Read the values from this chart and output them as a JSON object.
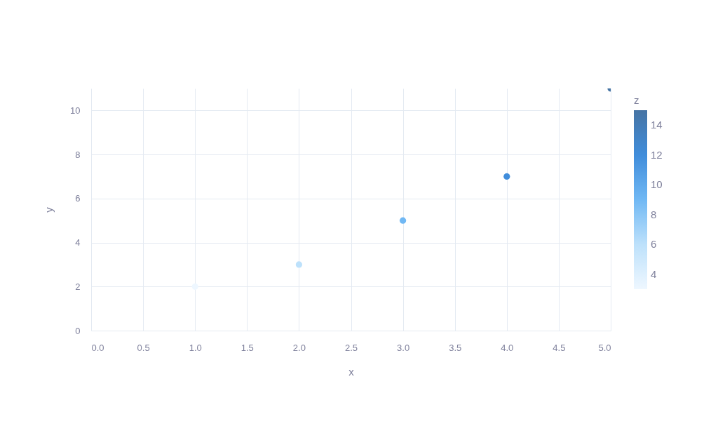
{
  "chart_data": {
    "type": "scatter",
    "xlabel": "x",
    "ylabel": "y",
    "clabel": "z",
    "x": [
      1,
      2,
      3,
      4,
      5
    ],
    "values": [
      2,
      3,
      5,
      7,
      11
    ],
    "cvalues": [
      3,
      6,
      9,
      12,
      15
    ],
    "colors": [
      "#eef7ff",
      "#bde1fb",
      "#70b8f4",
      "#408ddb",
      "#4674a4"
    ],
    "xlim": [
      0,
      5
    ],
    "ylim": [
      0,
      11
    ],
    "xticks": [
      {
        "value": 0,
        "label": "0.0"
      },
      {
        "value": 0.5,
        "label": "0.5"
      },
      {
        "value": 1,
        "label": "1.0"
      },
      {
        "value": 1.5,
        "label": "1.5"
      },
      {
        "value": 2,
        "label": "2.0"
      },
      {
        "value": 2.5,
        "label": "2.5"
      },
      {
        "value": 3,
        "label": "3.0"
      },
      {
        "value": 3.5,
        "label": "3.5"
      },
      {
        "value": 4,
        "label": "4.0"
      },
      {
        "value": 4.5,
        "label": "4.5"
      },
      {
        "value": 5,
        "label": "5.0"
      }
    ],
    "yticks": [
      0,
      2,
      4,
      6,
      8,
      10
    ],
    "clim": [
      3,
      15
    ],
    "cticks": [
      4,
      6,
      8,
      10,
      12,
      14
    ],
    "grid": true,
    "marker": "circle"
  }
}
